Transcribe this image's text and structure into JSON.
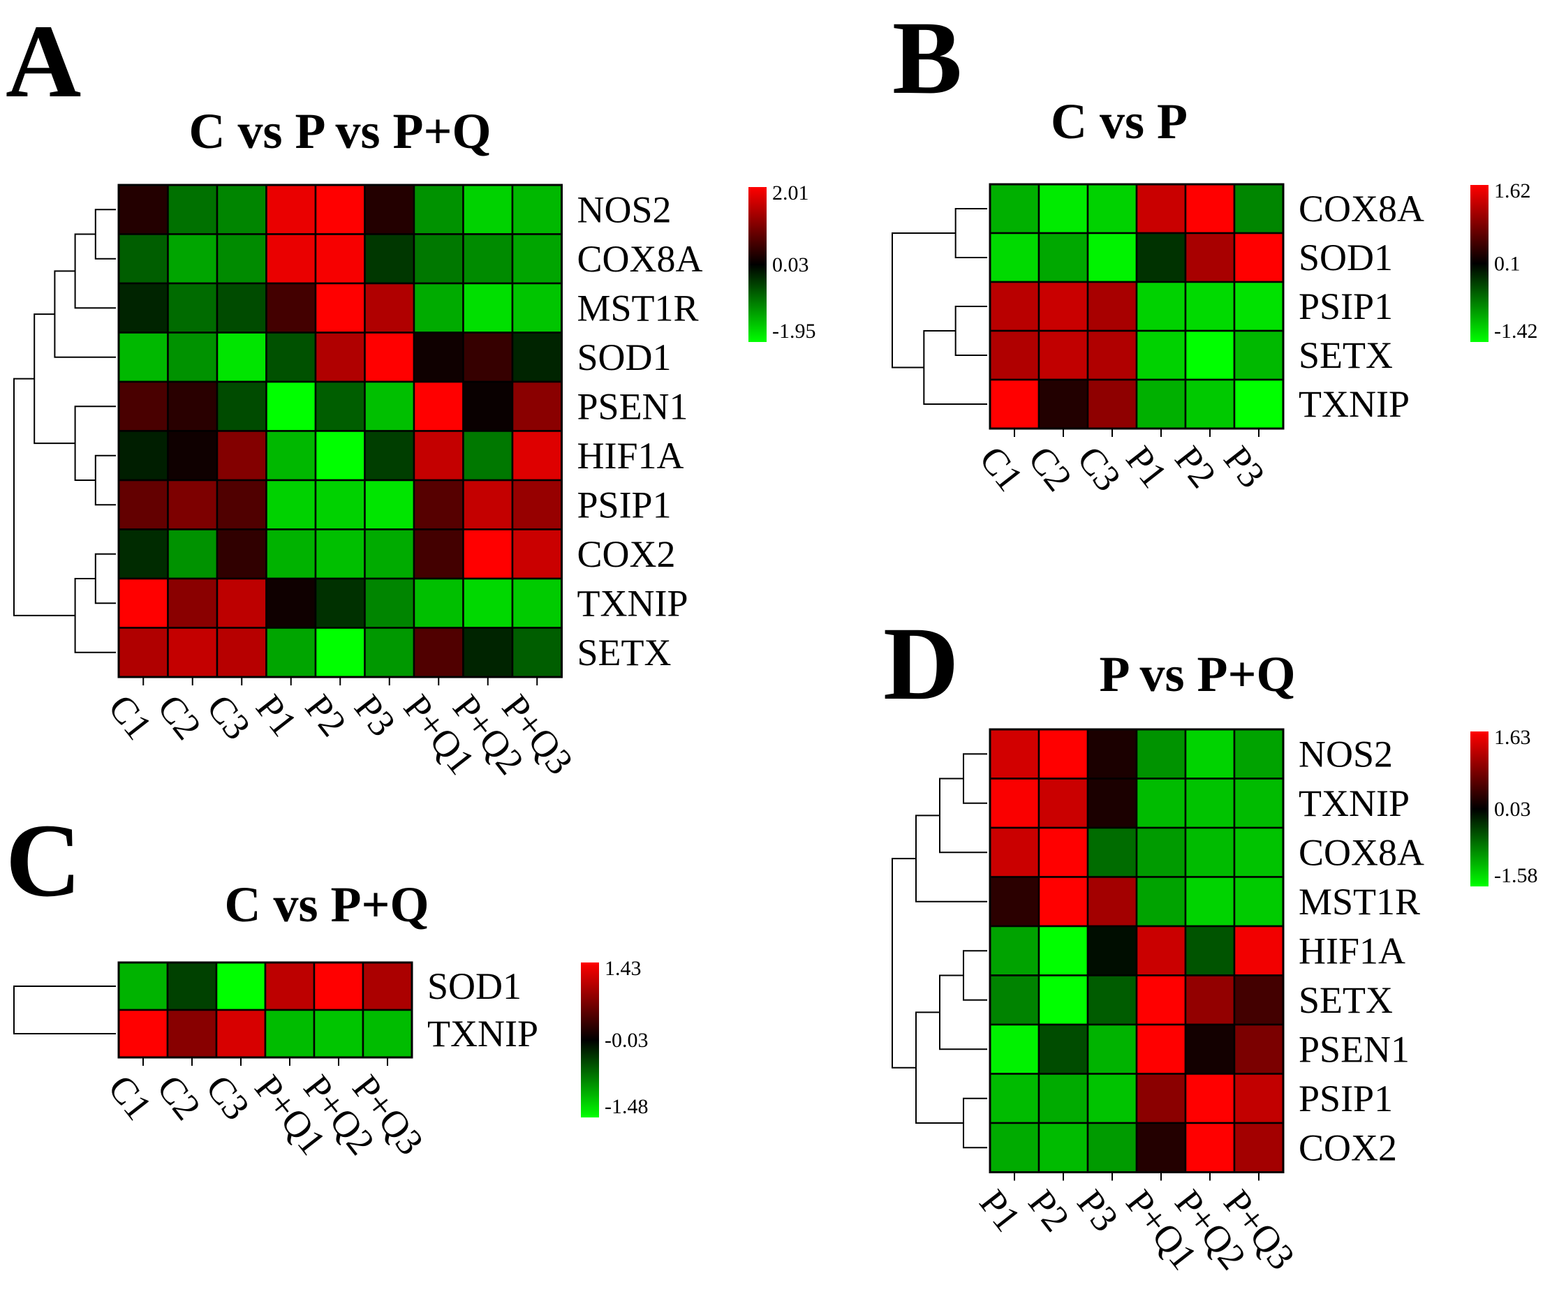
{
  "figure": {
    "description": "Four-panel heatmap figure of gene expression (A-D) with hierarchical clustering dendrograms"
  },
  "colors": {
    "low": "#00ff00",
    "mid": "#000000",
    "high": "#ff0000"
  },
  "chart_data": [
    {
      "id": "A",
      "type": "heatmap",
      "panel_label": "A",
      "title": "C vs P vs P+Q",
      "columns": [
        "C1",
        "C2",
        "C3",
        "P1",
        "P2",
        "P3",
        "P+Q1",
        "P+Q2",
        "P+Q3"
      ],
      "rows": [
        "NOS2",
        "COX8A",
        "MST1R",
        "SOD1",
        "PSEN1",
        "HIF1A",
        "PSIP1",
        "COX2",
        "TXNIP",
        "SETX"
      ],
      "values": [
        [
          0.3,
          -0.85,
          -1.0,
          1.85,
          2.01,
          0.3,
          -1.1,
          -1.6,
          -1.4
        ],
        [
          -0.7,
          -1.25,
          -1.05,
          1.85,
          1.95,
          -0.4,
          -0.9,
          -1.05,
          -1.25
        ],
        [
          -0.25,
          -0.8,
          -0.55,
          0.55,
          2.01,
          1.4,
          -1.3,
          -1.7,
          -1.5
        ],
        [
          -1.4,
          -1.1,
          -1.75,
          -0.6,
          1.4,
          2.01,
          0.15,
          0.45,
          -0.25
        ],
        [
          0.6,
          0.35,
          -0.55,
          -1.95,
          -0.7,
          -1.45,
          2.01,
          0.1,
          1.1
        ],
        [
          -0.2,
          0.15,
          1.05,
          -1.4,
          -1.95,
          -0.45,
          1.55,
          -0.9,
          1.75
        ],
        [
          0.8,
          1.0,
          0.65,
          -1.6,
          -1.6,
          -1.75,
          0.7,
          1.55,
          1.2
        ],
        [
          -0.3,
          -1.1,
          0.4,
          -1.35,
          -1.45,
          -1.3,
          0.55,
          2.01,
          1.6
        ],
        [
          2.01,
          1.1,
          1.5,
          0.15,
          -0.35,
          -1.0,
          -1.45,
          -1.65,
          -1.55
        ],
        [
          1.4,
          1.55,
          1.45,
          -1.25,
          -1.95,
          -1.15,
          0.65,
          -0.25,
          -0.7
        ]
      ],
      "scale": {
        "max": 2.01,
        "mid": 0.03,
        "min": -1.95,
        "labels": [
          "2.01",
          "0.03",
          "-1.95"
        ]
      },
      "row_dendrogram": {
        "merges": [
          [
            0,
            1
          ],
          [
            2,
            10
          ],
          [
            3,
            11
          ],
          [
            5,
            6
          ],
          [
            7,
            8
          ],
          [
            4,
            13
          ],
          [
            9,
            14
          ],
          [
            12,
            15
          ],
          [
            16,
            17
          ]
        ]
      }
    },
    {
      "id": "B",
      "type": "heatmap",
      "panel_label": "B",
      "title": "C vs P",
      "columns": [
        "C1",
        "C2",
        "C3",
        "P1",
        "P2",
        "P3"
      ],
      "rows": [
        "COX8A",
        "SOD1",
        "PSIP1",
        "SETX",
        "TXNIP"
      ],
      "values": [
        [
          -0.95,
          -1.3,
          -1.15,
          1.3,
          1.62,
          -0.7
        ],
        [
          -1.2,
          -0.9,
          -1.35,
          -0.2,
          1.1,
          1.62
        ],
        [
          1.2,
          1.3,
          1.1,
          -1.15,
          -1.2,
          -1.25
        ],
        [
          1.15,
          1.25,
          1.15,
          -1.15,
          -1.42,
          -1.0
        ],
        [
          1.62,
          0.3,
          0.95,
          -0.95,
          -1.1,
          -1.42
        ]
      ],
      "scale": {
        "max": 1.62,
        "mid": 0.1,
        "min": -1.42,
        "labels": [
          "1.62",
          "0.1",
          "-1.42"
        ]
      },
      "row_dendrogram": {
        "merges": [
          [
            0,
            1
          ],
          [
            2,
            3
          ],
          [
            4,
            6
          ],
          [
            5,
            7
          ]
        ]
      }
    },
    {
      "id": "C",
      "type": "heatmap",
      "panel_label": "C",
      "title": "C vs P+Q",
      "columns": [
        "C1",
        "C2",
        "C3",
        "P+Q1",
        "P+Q2",
        "P+Q3"
      ],
      "rows": [
        "SOD1",
        "TXNIP"
      ],
      "values": [
        [
          -1.05,
          -0.4,
          -1.48,
          1.05,
          1.43,
          0.95
        ],
        [
          1.43,
          0.75,
          1.2,
          -1.1,
          -1.15,
          -1.1
        ]
      ],
      "scale": {
        "max": 1.43,
        "mid": -0.03,
        "min": -1.48,
        "labels": [
          "1.43",
          "-0.03",
          "-1.48"
        ]
      },
      "row_dendrogram": {
        "merges": [
          [
            0,
            1
          ]
        ]
      }
    },
    {
      "id": "D",
      "type": "heatmap",
      "panel_label": "D",
      "title": "P vs P+Q",
      "columns": [
        "P1",
        "P2",
        "P3",
        "P+Q1",
        "P+Q2",
        "P+Q3"
      ],
      "rows": [
        "NOS2",
        "TXNIP",
        "COX8A",
        "MST1R",
        "HIF1A",
        "SETX",
        "PSEN1",
        "PSIP1",
        "COX2"
      ],
      "values": [
        [
          1.35,
          1.63,
          0.2,
          -0.9,
          -1.3,
          -1.0
        ],
        [
          1.6,
          1.3,
          0.2,
          -1.15,
          -1.2,
          -1.15
        ],
        [
          1.3,
          1.63,
          -0.65,
          -0.95,
          -1.15,
          -1.2
        ],
        [
          0.3,
          1.63,
          1.05,
          -1.0,
          -1.3,
          -1.25
        ],
        [
          -1.0,
          -1.58,
          -0.05,
          1.3,
          -0.5,
          1.55
        ],
        [
          -0.8,
          -1.58,
          -0.55,
          1.63,
          0.95,
          0.45
        ],
        [
          -1.5,
          -0.45,
          -1.1,
          1.63,
          0.15,
          0.8
        ],
        [
          -1.15,
          -1.05,
          -1.2,
          0.9,
          1.63,
          1.25
        ],
        [
          -1.05,
          -1.15,
          -0.95,
          0.25,
          1.63,
          1.05
        ]
      ],
      "scale": {
        "max": 1.63,
        "mid": 0.03,
        "min": -1.58,
        "labels": [
          "1.63",
          "0.03",
          "-1.58"
        ]
      },
      "row_dendrogram": {
        "merges": [
          [
            0,
            1
          ],
          [
            2,
            9
          ],
          [
            3,
            10
          ],
          [
            4,
            5
          ],
          [
            6,
            12
          ],
          [
            7,
            8
          ],
          [
            13,
            14
          ],
          [
            11,
            15
          ]
        ]
      }
    }
  ]
}
